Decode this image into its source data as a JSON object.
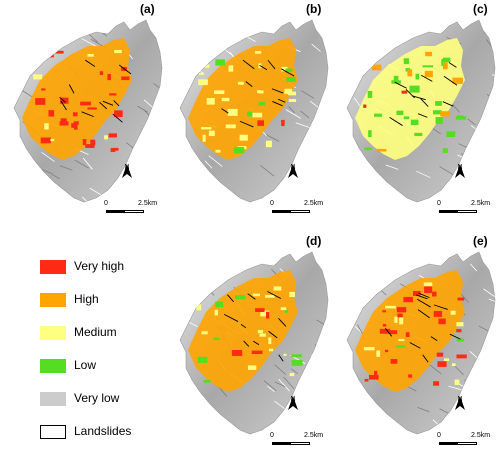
{
  "panels": [
    {
      "label": "(a)"
    },
    {
      "label": "(b)"
    },
    {
      "label": "(c)"
    },
    {
      "label": "(d)"
    },
    {
      "label": "(e)"
    }
  ],
  "north_letter": "N",
  "scale": {
    "zero": "0",
    "end": "2.5km"
  },
  "legend": [
    {
      "label": "Very high",
      "color": "#ff2a14"
    },
    {
      "label": "High",
      "color": "#ffa500"
    },
    {
      "label": "Medium",
      "color": "#ffff80"
    },
    {
      "label": "Low",
      "color": "#55dd22"
    },
    {
      "label": "Very low",
      "color": "#cccccc"
    },
    {
      "label": "Landslides",
      "color": "#ffffff"
    }
  ]
}
